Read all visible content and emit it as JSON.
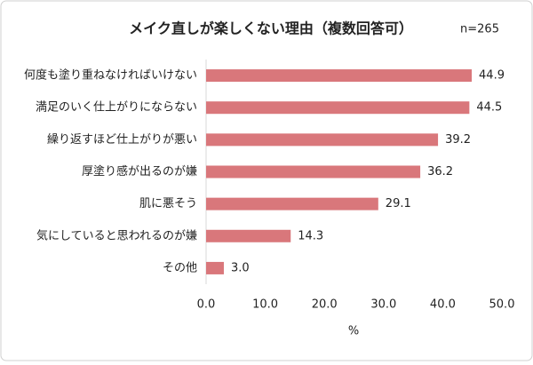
{
  "chart_data": {
    "type": "bar",
    "orientation": "horizontal",
    "title": "メイク直しが楽しくない理由（複数回答可）",
    "annotation": "n=265",
    "x_label": "%",
    "categories": [
      "何度も塗り重ねなければいけない",
      "満足のいく仕上がりにならない",
      "繰り返すほど仕上がりが悪い",
      "厚塗り感が出るのが嫌",
      "肌に悪そう",
      "気にしていると思われるのが嫌",
      "その他"
    ],
    "values": [
      44.9,
      44.5,
      39.2,
      36.2,
      29.1,
      14.3,
      3.0
    ],
    "value_labels": [
      "44.9",
      "44.5",
      "39.2",
      "36.2",
      "29.1",
      "14.3",
      "3.0"
    ],
    "color": "#d9777b",
    "xlim": [
      0,
      50
    ],
    "xticks": [
      {
        "value": 0,
        "label": "0.0"
      },
      {
        "value": 10,
        "label": "10.0"
      },
      {
        "value": 20,
        "label": "20.0"
      },
      {
        "value": 30,
        "label": "30.0"
      },
      {
        "value": 40,
        "label": "40.0"
      },
      {
        "value": 50,
        "label": "50.0"
      }
    ]
  }
}
